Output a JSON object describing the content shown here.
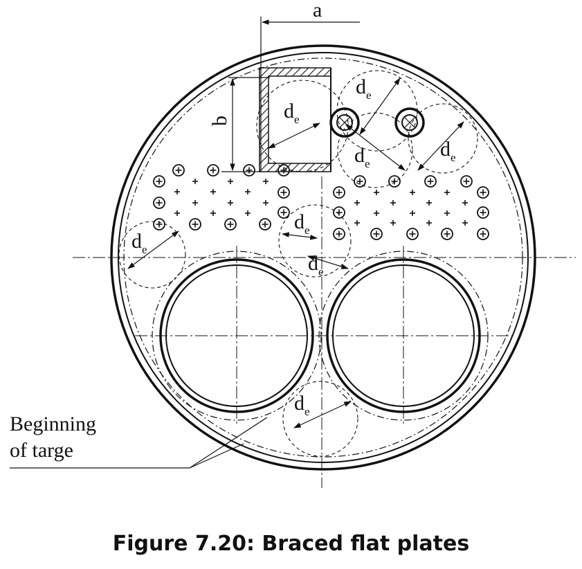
{
  "labels": {
    "dim_a": "a",
    "dim_b": "b",
    "d_main": "d",
    "d_sub": "e"
  },
  "callout": {
    "line1": "Beginning",
    "line2": "of targe"
  },
  "caption": "Figure 7.20: Braced flat plates",
  "colors": {
    "ink": "#111111",
    "background": "#ffffff"
  }
}
